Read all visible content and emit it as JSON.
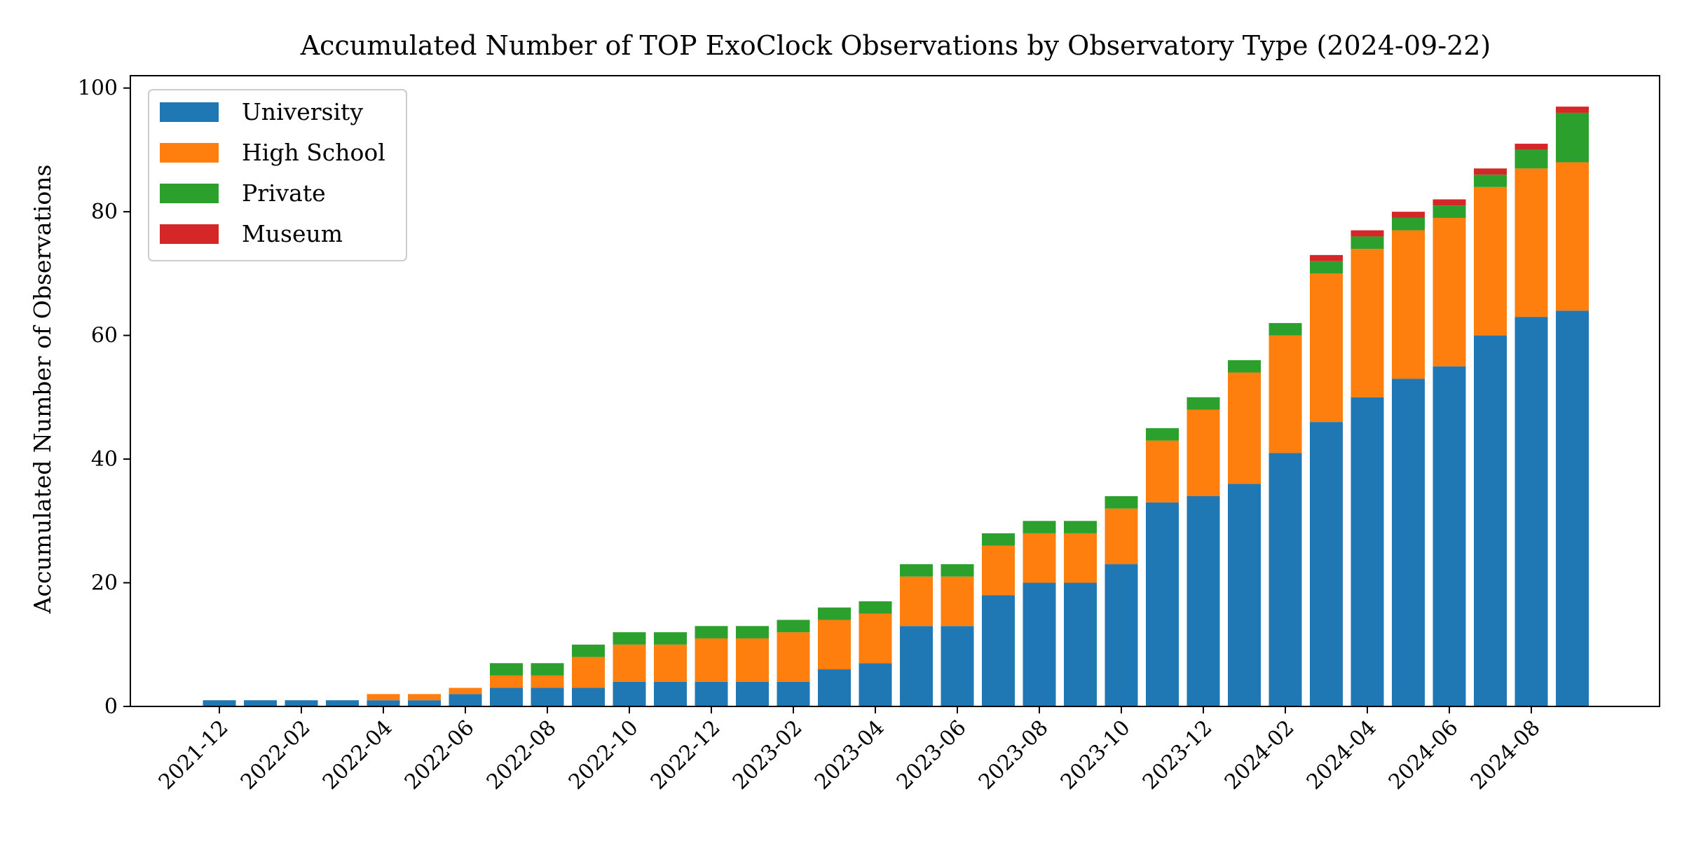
{
  "chart_data": {
    "type": "bar",
    "stacked": true,
    "title": "Accumulated Number of TOP ExoClock Observations by Observatory Type (2024-09-22)",
    "xlabel": "",
    "ylabel": "Accumulated Number of Observations",
    "ylim": [
      0,
      102
    ],
    "yticks": [
      0,
      20,
      40,
      60,
      80,
      100
    ],
    "grid": false,
    "legend_position": "top-left",
    "categories": [
      "2021-12",
      "2022-01",
      "2022-02",
      "2022-03",
      "2022-04",
      "2022-05",
      "2022-06",
      "2022-07",
      "2022-08",
      "2022-09",
      "2022-10",
      "2022-11",
      "2022-12",
      "2023-01",
      "2023-02",
      "2023-03",
      "2023-04",
      "2023-05",
      "2023-06",
      "2023-07",
      "2023-08",
      "2023-09",
      "2023-10",
      "2023-11",
      "2023-12",
      "2024-01",
      "2024-02",
      "2024-03",
      "2024-04",
      "2024-05",
      "2024-06",
      "2024-07",
      "2024-08",
      "2024-09"
    ],
    "xtick_labels": [
      "2021-12",
      "2022-02",
      "2022-04",
      "2022-06",
      "2022-08",
      "2022-10",
      "2022-12",
      "2023-02",
      "2023-04",
      "2023-06",
      "2023-08",
      "2023-10",
      "2023-12",
      "2024-02",
      "2024-04",
      "2024-06",
      "2024-08"
    ],
    "series": [
      {
        "name": "University",
        "color": "#1f77b4",
        "values": [
          1,
          1,
          1,
          1,
          1,
          1,
          2,
          3,
          3,
          3,
          4,
          4,
          4,
          4,
          4,
          6,
          7,
          13,
          13,
          18,
          20,
          20,
          23,
          33,
          34,
          36,
          41,
          46,
          50,
          53,
          55,
          60,
          63,
          64
        ]
      },
      {
        "name": "High School",
        "color": "#ff7f0e",
        "values": [
          0,
          0,
          0,
          0,
          1,
          1,
          1,
          2,
          2,
          5,
          6,
          6,
          7,
          7,
          8,
          8,
          8,
          8,
          8,
          8,
          8,
          8,
          9,
          10,
          14,
          18,
          19,
          24,
          24,
          24,
          24,
          24,
          24,
          24
        ]
      },
      {
        "name": "Private",
        "color": "#2ca02c",
        "values": [
          0,
          0,
          0,
          0,
          0,
          0,
          0,
          2,
          2,
          2,
          2,
          2,
          2,
          2,
          2,
          2,
          2,
          2,
          2,
          2,
          2,
          2,
          2,
          2,
          2,
          2,
          2,
          2,
          2,
          2,
          2,
          2,
          3,
          8
        ]
      },
      {
        "name": "Museum",
        "color": "#d62728",
        "values": [
          0,
          0,
          0,
          0,
          0,
          0,
          0,
          0,
          0,
          0,
          0,
          0,
          0,
          0,
          0,
          0,
          0,
          0,
          0,
          0,
          0,
          0,
          0,
          0,
          0,
          0,
          0,
          1,
          1,
          1,
          1,
          1,
          1,
          1
        ]
      }
    ]
  }
}
